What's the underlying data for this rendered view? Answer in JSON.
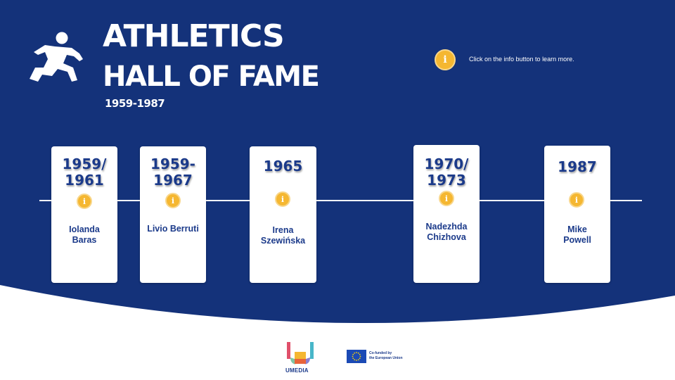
{
  "header": {
    "title_line1": "ATHLETICS",
    "title_line2": "HALL OF FAME",
    "subtitle": "1959-1987"
  },
  "info": {
    "glyph": "i",
    "hint": "Click on the info button to learn more."
  },
  "timeline": {
    "cards": [
      {
        "year_line1": "1959/",
        "year_line2": "1961",
        "name_line1": "Iolanda",
        "name_line2": "Baras"
      },
      {
        "year_line1": "1959-",
        "year_line2": "1967",
        "name_line1": "Livio Berruti",
        "name_line2": ""
      },
      {
        "year_line1": "1965",
        "year_line2": "",
        "name_line1": "Irena",
        "name_line2": "Szewińska"
      },
      {
        "year_line1": "1970/",
        "year_line2": "1973",
        "name_line1": "Nadezhda",
        "name_line2": "Chizhova"
      },
      {
        "year_line1": "1987",
        "year_line2": "",
        "name_line1": "Mike",
        "name_line2": "Powell"
      }
    ]
  },
  "footer": {
    "umedia_label": "UMEDIA",
    "eu_line1": "Co-funded by",
    "eu_line2": "the European Union"
  },
  "colors": {
    "navy": "#14327a",
    "accent_yellow": "#f5b731",
    "card_text": "#1b3a8a",
    "eu_blue": "#1b4ab5",
    "eu_star": "#ffd400"
  },
  "icons": {
    "logo": "runner-icon",
    "info": "info-icon",
    "flag": "eu-flag-icon"
  }
}
